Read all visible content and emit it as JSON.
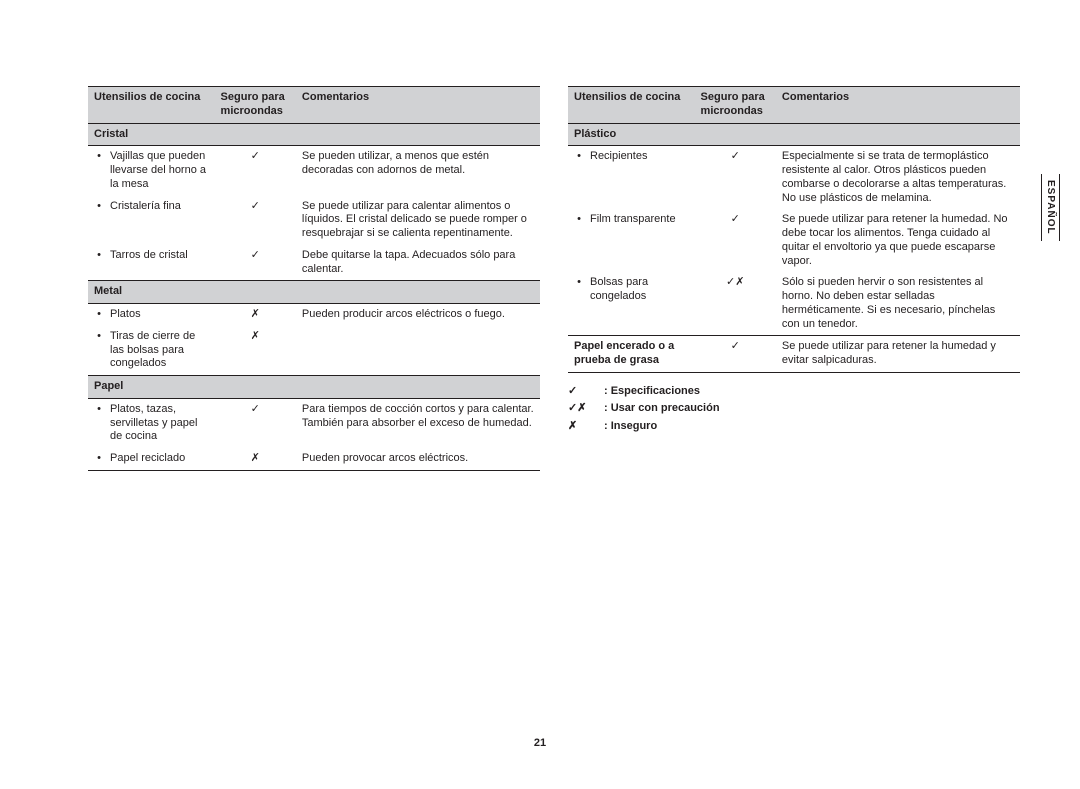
{
  "pageNumber": "21",
  "sideTab": "ESPAÑOL",
  "headers": {
    "col1": "Utensilios de cocina",
    "col2": "Seguro para microondas",
    "col3": "Comentarios"
  },
  "symbols": {
    "check": "✓",
    "cross": "✗",
    "both": "✓✗"
  },
  "left": {
    "sections": [
      {
        "title": "Cristal",
        "rows": [
          {
            "item": "Vajillas que pueden llevarse del horno a la mesa",
            "sym": "check",
            "comment": "Se pueden utilizar, a menos que estén decoradas con adornos de metal."
          },
          {
            "item": "Cristalería fina",
            "sym": "check",
            "comment": "Se puede utilizar para calentar alimentos o líquidos. El cristal delicado se puede romper o resquebrajar si se calienta repentinamente."
          },
          {
            "item": "Tarros de cristal",
            "sym": "check",
            "comment": "Debe quitarse la tapa. Adecuados sólo para calentar."
          }
        ]
      },
      {
        "title": "Metal",
        "rows": [
          {
            "item": "Platos",
            "sym": "cross",
            "comment": "Pueden producir arcos eléctricos o fuego."
          },
          {
            "item": "Tiras de cierre de las bolsas para congelados",
            "sym": "cross",
            "comment": ""
          }
        ]
      },
      {
        "title": "Papel",
        "rows": [
          {
            "item": "Platos, tazas, servilletas y papel de cocina",
            "sym": "check",
            "comment": "Para tiempos de cocción cortos y para calentar. También para absorber el exceso de humedad."
          },
          {
            "item": "Papel reciclado",
            "sym": "cross",
            "comment": "Pueden provocar arcos eléctricos."
          }
        ]
      }
    ]
  },
  "right": {
    "sections": [
      {
        "title": "Plástico",
        "rows": [
          {
            "item": "Recipientes",
            "sym": "check",
            "comment": "Especialmente si se trata de termoplástico resistente al calor. Otros plásticos pueden combarse o decolorarse a altas temperaturas. No use plásticos de melamina."
          },
          {
            "item": "Film transparente",
            "sym": "check",
            "comment": "Se puede utilizar para retener la humedad. No debe tocar los alimentos. Tenga cuidado al quitar el envoltorio ya que puede escaparse vapor."
          },
          {
            "item": "Bolsas para congelados",
            "sym": "both",
            "comment": "Sólo si pueden hervir o son resistentes al horno. No deben estar selladas herméticamente. Si es necesario, pínchelas con un tenedor."
          }
        ]
      }
    ],
    "footerRow": {
      "item": "Papel encerado o a prueba de grasa",
      "sym": "check",
      "comment": "Se puede utilizar para retener la humedad y evitar salpicaduras."
    }
  },
  "legend": [
    {
      "sym": "check",
      "label": ": Especificaciones"
    },
    {
      "sym": "both",
      "label": ": Usar con precaución"
    },
    {
      "sym": "cross",
      "label": ": Inseguro"
    }
  ]
}
